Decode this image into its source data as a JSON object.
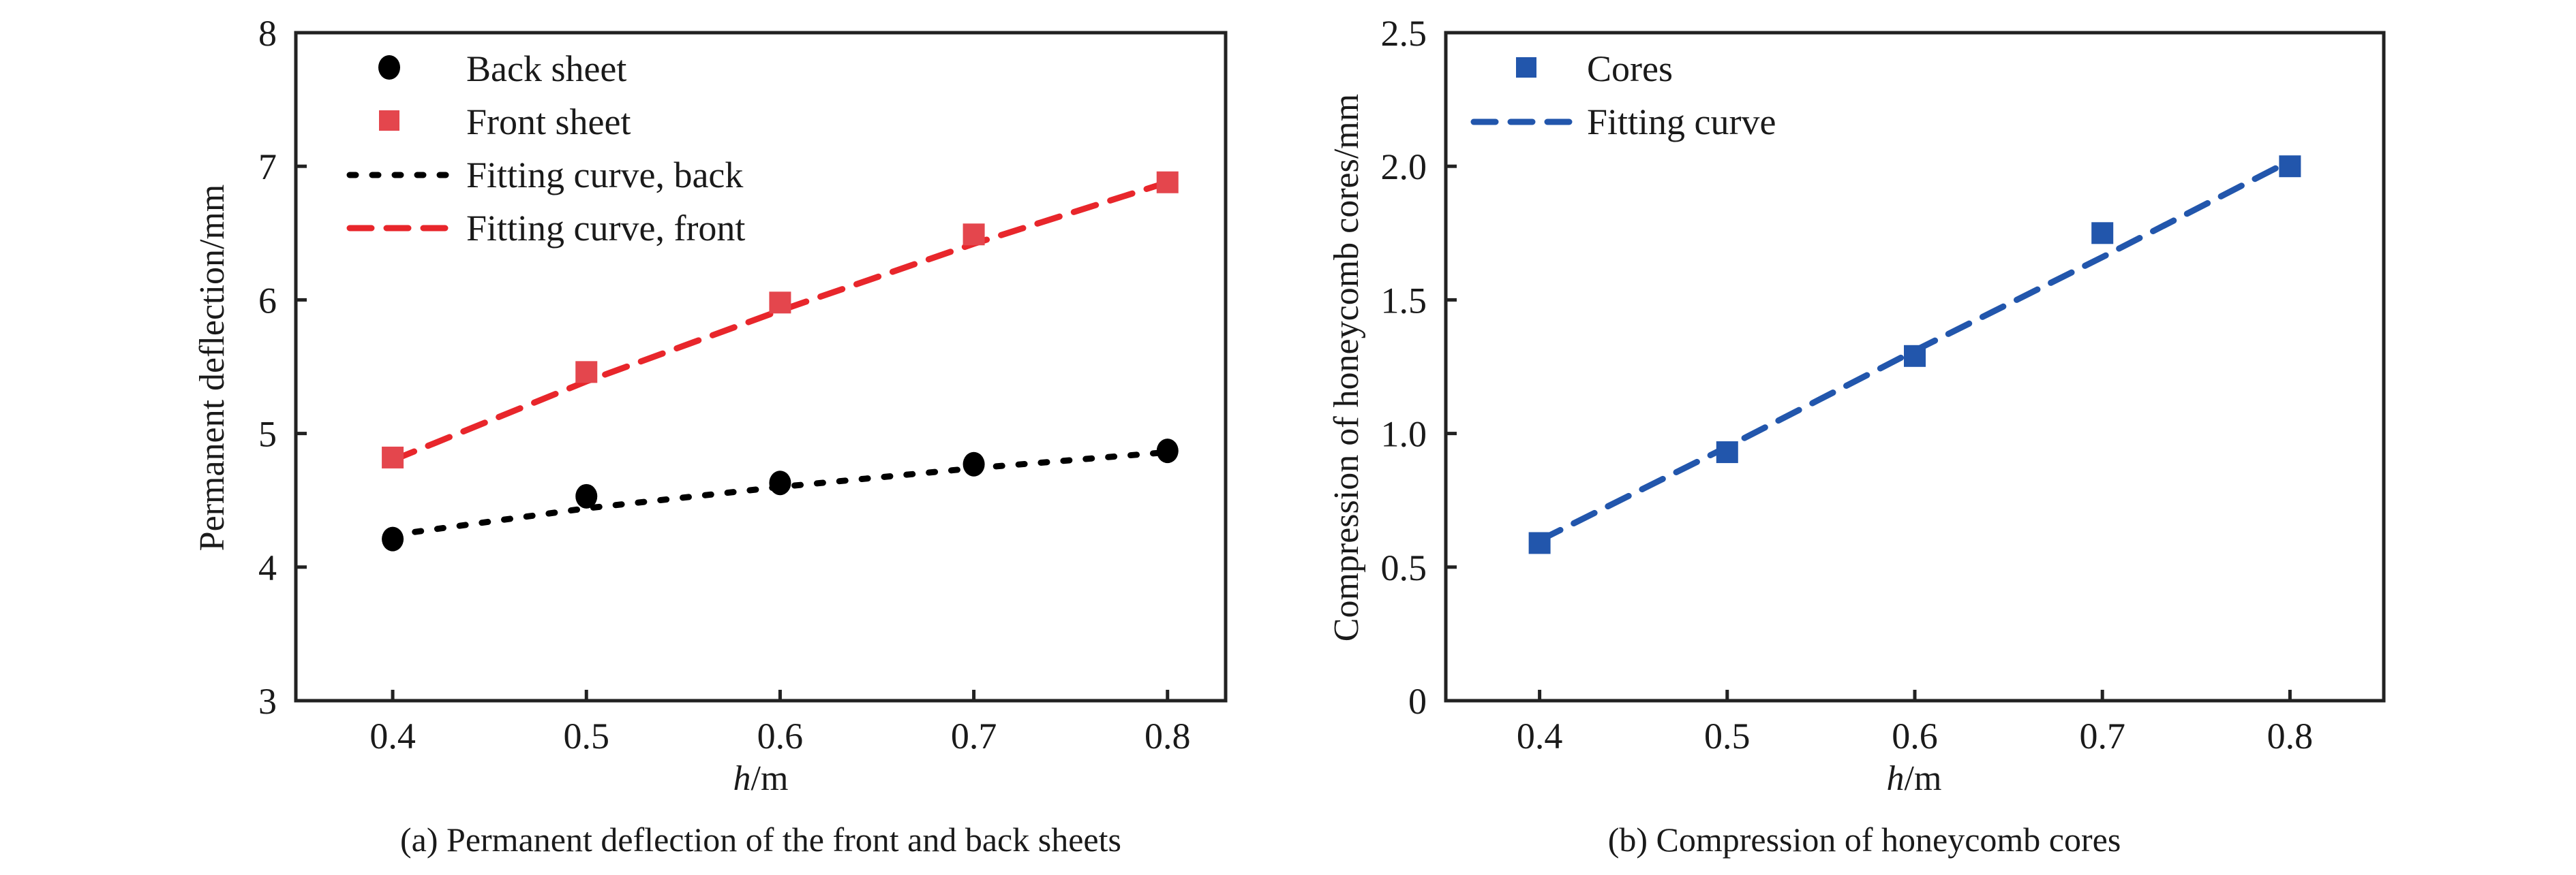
{
  "chart_data": [
    {
      "type": "scatter",
      "caption": "(a) Permanent deflection of the front and back sheets",
      "xlabel_italic": "h",
      "xlabel_unit": "/m",
      "ylabel": "Permanent deflection/mm",
      "xlim": [
        0.35,
        0.83
      ],
      "ylim": [
        3,
        8
      ],
      "xticks": [
        "0.4",
        "0.5",
        "0.6",
        "0.7",
        "0.8"
      ],
      "yticks": [
        "3",
        "4",
        "5",
        "6",
        "7",
        "8"
      ],
      "grid": false,
      "legend_position": "top-left",
      "x": [
        0.4,
        0.5,
        0.6,
        0.7,
        0.8
      ],
      "series": [
        {
          "name": "Back sheet",
          "kind": "points",
          "marker": "circle",
          "color": "#000000",
          "values": [
            4.21,
            4.53,
            4.63,
            4.77,
            4.87
          ]
        },
        {
          "name": "Front sheet",
          "kind": "points",
          "marker": "square",
          "color": "#e4464d",
          "values": [
            4.82,
            5.46,
            5.98,
            6.49,
            6.88
          ]
        },
        {
          "name": "Fitting curve, back",
          "kind": "line",
          "dash": "dotted",
          "color": "#000000",
          "values": [
            4.24,
            4.44,
            4.6,
            4.74,
            4.86
          ]
        },
        {
          "name": "Fitting curve, front",
          "kind": "line",
          "dash": "dashed",
          "color": "#e8262b",
          "values": [
            4.8,
            5.39,
            5.92,
            6.42,
            6.88
          ]
        }
      ]
    },
    {
      "type": "scatter",
      "caption": "(b) Compression of honeycomb cores",
      "xlabel_italic": "h",
      "xlabel_unit": "/m",
      "ylabel": "Compression of honeycomb cores/mm",
      "xlim": [
        0.35,
        0.85
      ],
      "ylim": [
        0,
        2.5
      ],
      "xticks": [
        "0.4",
        "0.5",
        "0.6",
        "0.7",
        "0.8"
      ],
      "yticks": [
        "0",
        "0.5",
        "1.0",
        "1.5",
        "2.0",
        "2.5"
      ],
      "grid": false,
      "legend_position": "top-left",
      "x": [
        0.4,
        0.5,
        0.6,
        0.7,
        0.8
      ],
      "series": [
        {
          "name": "Cores",
          "kind": "points",
          "marker": "square",
          "color": "#2256ac",
          "values": [
            0.59,
            0.93,
            1.29,
            1.75,
            2.0
          ]
        },
        {
          "name": "Fitting curve",
          "kind": "line",
          "dash": "dashed",
          "color": "#2256ac",
          "values": [
            0.6,
            0.95,
            1.31,
            1.66,
            2.02
          ]
        }
      ]
    }
  ]
}
